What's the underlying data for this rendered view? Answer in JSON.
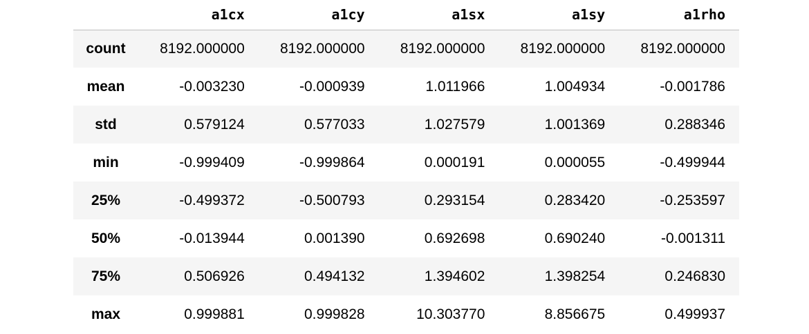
{
  "table": {
    "columns": [
      "a1cx",
      "a1cy",
      "a1sx",
      "a1sy",
      "a1rho"
    ],
    "rows": [
      {
        "index": "count",
        "values": [
          "8192.000000",
          "8192.000000",
          "8192.000000",
          "8192.000000",
          "8192.000000"
        ]
      },
      {
        "index": "mean",
        "values": [
          "-0.003230",
          "-0.000939",
          "1.011966",
          "1.004934",
          "-0.001786"
        ]
      },
      {
        "index": "std",
        "values": [
          "0.579124",
          "0.577033",
          "1.027579",
          "1.001369",
          "0.288346"
        ]
      },
      {
        "index": "min",
        "values": [
          "-0.999409",
          "-0.999864",
          "0.000191",
          "0.000055",
          "-0.499944"
        ]
      },
      {
        "index": "25%",
        "values": [
          "-0.499372",
          "-0.500793",
          "0.293154",
          "0.283420",
          "-0.253597"
        ]
      },
      {
        "index": "50%",
        "values": [
          "-0.013944",
          "0.001390",
          "0.692698",
          "0.690240",
          "-0.001311"
        ]
      },
      {
        "index": "75%",
        "values": [
          "0.506926",
          "0.494132",
          "1.394602",
          "1.398254",
          "0.246830"
        ]
      },
      {
        "index": "max",
        "values": [
          "0.999881",
          "0.999828",
          "10.303770",
          "8.856675",
          "0.499937"
        ]
      }
    ]
  },
  "colors": {
    "stripe": "#f5f5f5",
    "header_rule": "#bdbdbd",
    "text": "#000000"
  }
}
